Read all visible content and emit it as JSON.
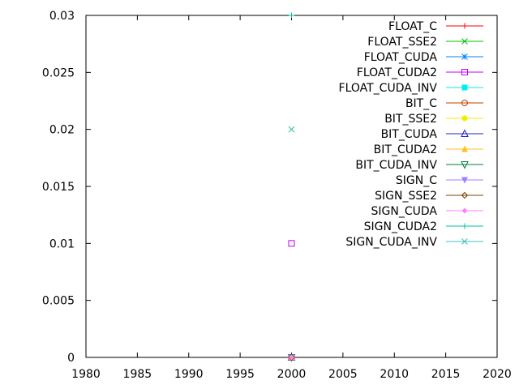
{
  "chart_data": {
    "type": "scatter",
    "title": "",
    "xlabel": "",
    "ylabel": "",
    "xlim": [
      1980,
      2020
    ],
    "ylim": [
      0,
      0.03
    ],
    "xticks": [
      "1980",
      "1985",
      "1990",
      "1995",
      "2000",
      "2005",
      "2010",
      "2015",
      "2020"
    ],
    "yticks": [
      "0",
      "0.005",
      "0.01",
      "0.015",
      "0.02",
      "0.025",
      "0.03"
    ],
    "grid": false,
    "legend_position": "top-right",
    "series": [
      {
        "name": "FLOAT_C",
        "color": "#ff0000",
        "marker": "plus",
        "points": [
          [
            2000,
            0
          ]
        ]
      },
      {
        "name": "FLOAT_SSE2",
        "color": "#00c000",
        "marker": "cross",
        "points": [
          [
            2000,
            0.02
          ]
        ]
      },
      {
        "name": "FLOAT_CUDA",
        "color": "#0080ff",
        "marker": "star",
        "points": [
          [
            2000,
            0
          ]
        ]
      },
      {
        "name": "FLOAT_CUDA2",
        "color": "#c000ff",
        "marker": "square",
        "points": [
          [
            2000,
            0.01
          ]
        ]
      },
      {
        "name": "FLOAT_CUDA_INV",
        "color": "#00eeee",
        "marker": "square-filled",
        "points": [
          [
            2000,
            0
          ]
        ]
      },
      {
        "name": "BIT_C",
        "color": "#c04000",
        "marker": "circle",
        "points": [
          [
            2000,
            0
          ]
        ]
      },
      {
        "name": "BIT_SSE2",
        "color": "#eeee00",
        "marker": "circle-filled",
        "points": [
          [
            2000,
            0
          ]
        ]
      },
      {
        "name": "BIT_CUDA",
        "color": "#2020c0",
        "marker": "triangle-up",
        "points": [
          [
            2000,
            0
          ]
        ]
      },
      {
        "name": "BIT_CUDA2",
        "color": "#ffc020",
        "marker": "triangle-up-filled",
        "points": [
          [
            2000,
            0
          ]
        ]
      },
      {
        "name": "BIT_CUDA_INV",
        "color": "#008040",
        "marker": "triangle-down",
        "points": [
          [
            2000,
            0
          ]
        ]
      },
      {
        "name": "SIGN_C",
        "color": "#a080ff",
        "marker": "triangle-down-filled",
        "points": [
          [
            2000,
            0
          ]
        ]
      },
      {
        "name": "SIGN_SSE2",
        "color": "#804000",
        "marker": "diamond",
        "points": [
          [
            2000,
            0
          ]
        ]
      },
      {
        "name": "SIGN_CUDA",
        "color": "#ff80ff",
        "marker": "diamond-filled",
        "points": [
          [
            2000,
            0
          ]
        ]
      },
      {
        "name": "SIGN_CUDA2",
        "color": "#00c0a0",
        "marker": "plus",
        "points": [
          [
            2000,
            0.03
          ]
        ]
      },
      {
        "name": "SIGN_CUDA_INV",
        "color": "#40c0c0",
        "marker": "cross",
        "points": [
          [
            2000,
            0.02
          ]
        ]
      }
    ]
  }
}
